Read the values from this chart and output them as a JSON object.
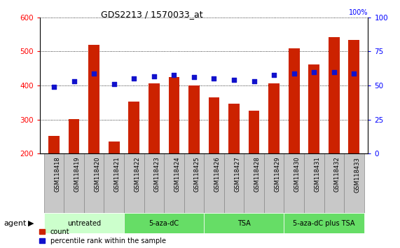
{
  "title": "GDS2213 / 1570033_at",
  "samples": [
    "GSM118418",
    "GSM118419",
    "GSM118420",
    "GSM118421",
    "GSM118422",
    "GSM118423",
    "GSM118424",
    "GSM118425",
    "GSM118426",
    "GSM118427",
    "GSM118428",
    "GSM118429",
    "GSM118430",
    "GSM118431",
    "GSM118432",
    "GSM118433"
  ],
  "counts": [
    252,
    302,
    519,
    236,
    352,
    407,
    424,
    401,
    365,
    347,
    327,
    407,
    509,
    462,
    543,
    534
  ],
  "percentile_ranks": [
    49,
    53,
    59,
    51,
    55,
    57,
    58,
    56,
    55,
    54,
    53,
    58,
    59,
    60,
    60,
    59
  ],
  "ylim_left": [
    200,
    600
  ],
  "ylim_right": [
    0,
    100
  ],
  "yticks_left": [
    200,
    300,
    400,
    500,
    600
  ],
  "yticks_right": [
    0,
    25,
    50,
    75,
    100
  ],
  "bar_color": "#cc2200",
  "dot_color": "#1111cc",
  "groups": [
    {
      "label": "untreated",
      "start": 0,
      "end": 4,
      "color": "#ccffcc"
    },
    {
      "label": "5-aza-dC",
      "start": 4,
      "end": 8,
      "color": "#66dd66"
    },
    {
      "label": "TSA",
      "start": 8,
      "end": 12,
      "color": "#66dd66"
    },
    {
      "label": "5-aza-dC plus TSA",
      "start": 12,
      "end": 16,
      "color": "#66dd66"
    }
  ],
  "agent_label": "agent",
  "legend_count_label": "count",
  "legend_percentile_label": "percentile rank within the sample",
  "tick_bg_color": "#c8c8c8",
  "tick_border_color": "#888888"
}
